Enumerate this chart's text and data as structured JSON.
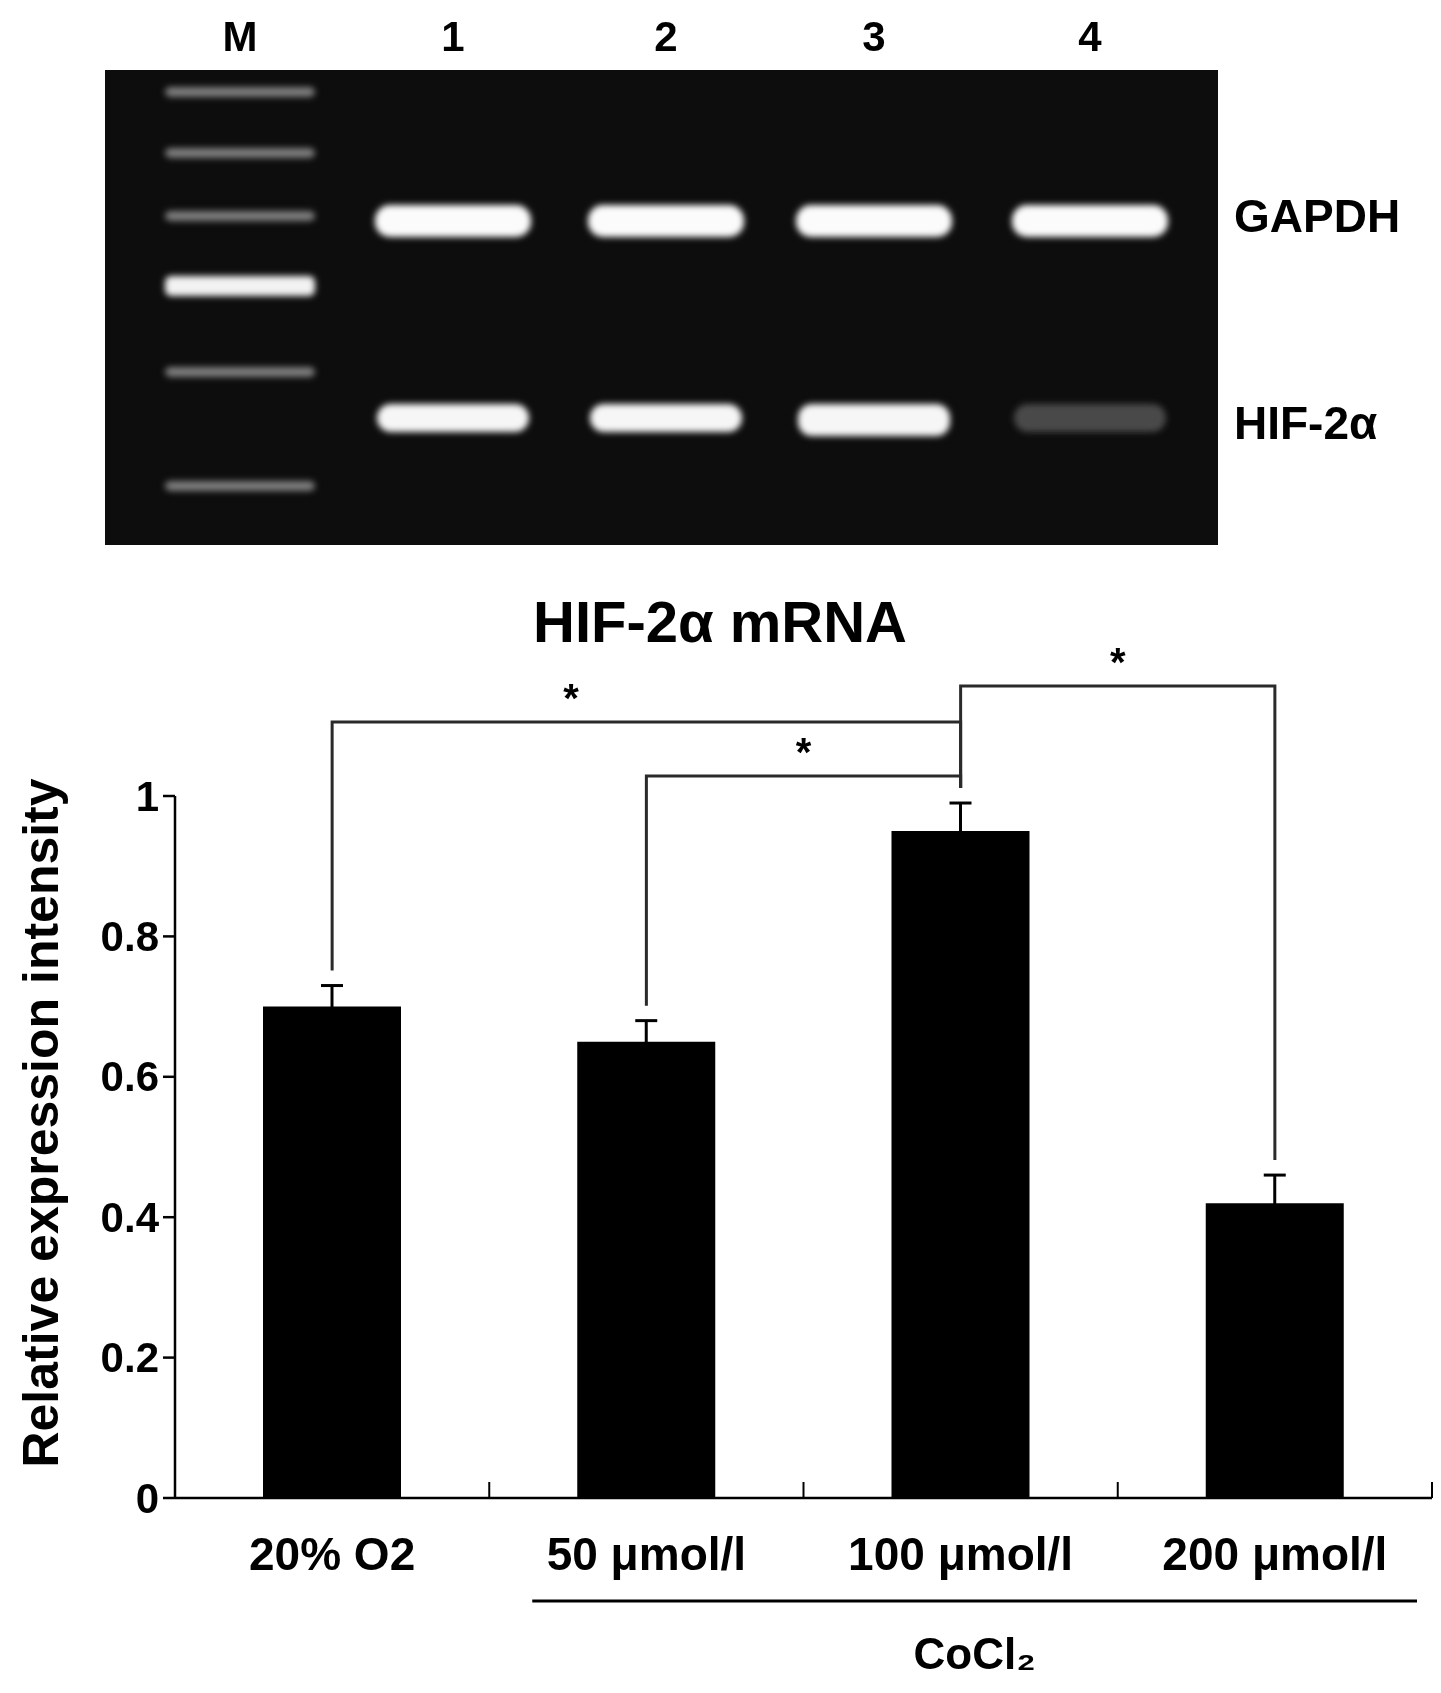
{
  "chart_data": {
    "type": "bar",
    "title": "HIF-2α mRNA",
    "ylabel": "Relative expression intensity",
    "categories": [
      "20% O2",
      "50 μmol/l",
      "100 μmol/l",
      "200 μmol/l"
    ],
    "values": [
      0.7,
      0.65,
      0.95,
      0.42
    ],
    "errors": [
      0.03,
      0.03,
      0.04,
      0.04
    ],
    "color": "#000000",
    "ylim": [
      0,
      1
    ],
    "yticks": [
      0,
      0.2,
      0.4,
      0.6,
      0.8,
      1
    ],
    "annotations": [
      "M",
      "1",
      "2",
      "3",
      "4",
      "GAPDH",
      "HIF-2α",
      "*",
      "*",
      "*",
      "CoCl₂"
    ]
  }
}
